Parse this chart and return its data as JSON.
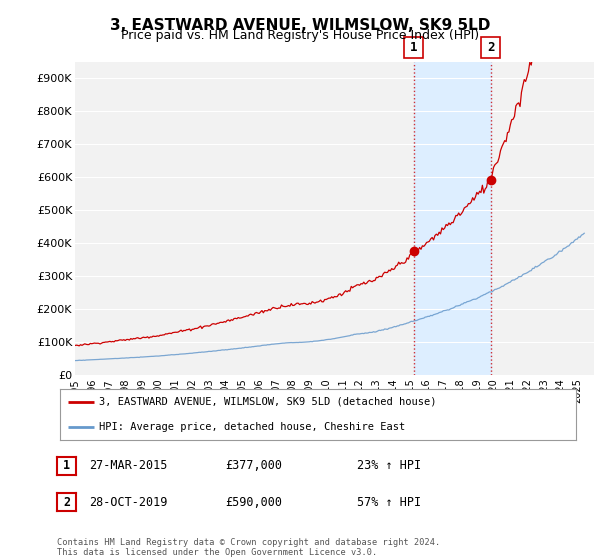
{
  "title": "3, EASTWARD AVENUE, WILMSLOW, SK9 5LD",
  "subtitle": "Price paid vs. HM Land Registry's House Price Index (HPI)",
  "title_fontsize": 11,
  "subtitle_fontsize": 9,
  "ylim": [
    0,
    950000
  ],
  "yticks": [
    0,
    100000,
    200000,
    300000,
    400000,
    500000,
    600000,
    700000,
    800000,
    900000
  ],
  "ytick_labels": [
    "£0",
    "£100K",
    "£200K",
    "£300K",
    "£400K",
    "£500K",
    "£600K",
    "£700K",
    "£800K",
    "£900K"
  ],
  "background_color": "#ffffff",
  "plot_bg_color": "#f2f2f2",
  "grid_color": "#ffffff",
  "red_line_color": "#cc0000",
  "blue_line_color": "#6699cc",
  "sale1_x": 2015.23,
  "sale1_y": 377000,
  "sale1_label": "1",
  "sale2_x": 2019.83,
  "sale2_y": 590000,
  "sale2_label": "2",
  "vline_color": "#cc0000",
  "highlight_color": "#ddeeff",
  "legend_line1": "3, EASTWARD AVENUE, WILMSLOW, SK9 5LD (detached house)",
  "legend_line2": "HPI: Average price, detached house, Cheshire East",
  "table_row1_num": "1",
  "table_row1_date": "27-MAR-2015",
  "table_row1_price": "£377,000",
  "table_row1_hpi": "23% ↑ HPI",
  "table_row2_num": "2",
  "table_row2_date": "28-OCT-2019",
  "table_row2_price": "£590,000",
  "table_row2_hpi": "57% ↑ HPI",
  "footer": "Contains HM Land Registry data © Crown copyright and database right 2024.\nThis data is licensed under the Open Government Licence v3.0.",
  "xmin": 1995,
  "xmax": 2026
}
